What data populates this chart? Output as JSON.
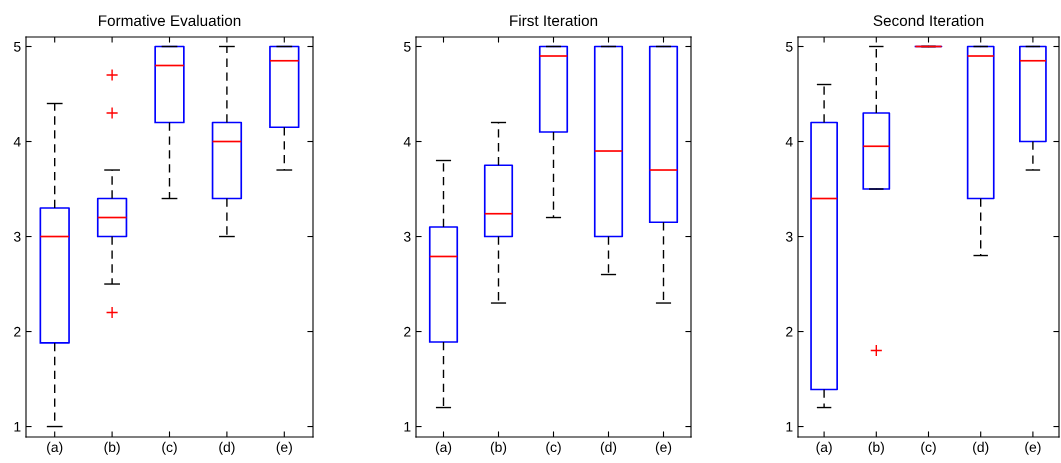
{
  "chart_data": [
    {
      "type": "box",
      "title": "Formative Evaluation",
      "categories": [
        "(a)",
        "(b)",
        "(c)",
        "(d)",
        "(e)"
      ],
      "ylim": [
        0.89,
        5.1
      ],
      "yticks": [
        1,
        2,
        3,
        4,
        5
      ],
      "grid": false,
      "boxes": [
        {
          "low": 1.0,
          "q1": 1.88,
          "median": 3.0,
          "q3": 3.3,
          "high": 4.4
        },
        {
          "low": 2.5,
          "q1": 3.0,
          "median": 3.2,
          "q3": 3.4,
          "high": 3.7,
          "outliers": [
            4.7,
            4.3,
            2.2
          ]
        },
        {
          "low": 3.4,
          "q1": 4.2,
          "median": 4.8,
          "q3": 5.0,
          "high": 5.0
        },
        {
          "low": 3.0,
          "q1": 3.4,
          "median": 4.0,
          "q3": 4.2,
          "high": 5.0
        },
        {
          "low": 3.7,
          "q1": 4.15,
          "median": 4.85,
          "q3": 5.0,
          "high": 5.0
        }
      ]
    },
    {
      "type": "box",
      "title": "First Iteration",
      "categories": [
        "(a)",
        "(b)",
        "(c)",
        "(d)",
        "(e)"
      ],
      "ylim": [
        0.89,
        5.1
      ],
      "yticks": [
        1,
        2,
        3,
        4,
        5
      ],
      "grid": false,
      "boxes": [
        {
          "low": 1.2,
          "q1": 1.89,
          "median": 2.79,
          "q3": 3.1,
          "high": 3.8
        },
        {
          "low": 2.3,
          "q1": 3.0,
          "median": 3.24,
          "q3": 3.75,
          "high": 4.2
        },
        {
          "low": 3.2,
          "q1": 4.1,
          "median": 4.9,
          "q3": 5.0,
          "high": 5.0
        },
        {
          "low": 2.6,
          "q1": 3.0,
          "median": 3.9,
          "q3": 5.0,
          "high": 5.0
        },
        {
          "low": 2.3,
          "q1": 3.15,
          "median": 3.7,
          "q3": 5.0,
          "high": 5.0
        }
      ]
    },
    {
      "type": "box",
      "title": "Second Iteration",
      "categories": [
        "(a)",
        "(b)",
        "(c)",
        "(d)",
        "(e)"
      ],
      "ylim": [
        0.89,
        5.1
      ],
      "yticks": [
        1,
        2,
        3,
        4,
        5
      ],
      "grid": false,
      "boxes": [
        {
          "low": 1.2,
          "q1": 1.39,
          "median": 3.4,
          "q3": 4.2,
          "high": 4.6
        },
        {
          "low": 3.5,
          "q1": 3.5,
          "median": 3.95,
          "q3": 4.3,
          "high": 5.0,
          "outliers": [
            1.8
          ]
        },
        {
          "low": 5.0,
          "q1": 5.0,
          "median": 5.0,
          "q3": 5.0,
          "high": 5.0
        },
        {
          "low": 2.8,
          "q1": 3.4,
          "median": 4.9,
          "q3": 5.0,
          "high": 5.0
        },
        {
          "low": 3.7,
          "q1": 4.0,
          "median": 4.85,
          "q3": 5.0,
          "high": 5.0
        }
      ]
    }
  ]
}
